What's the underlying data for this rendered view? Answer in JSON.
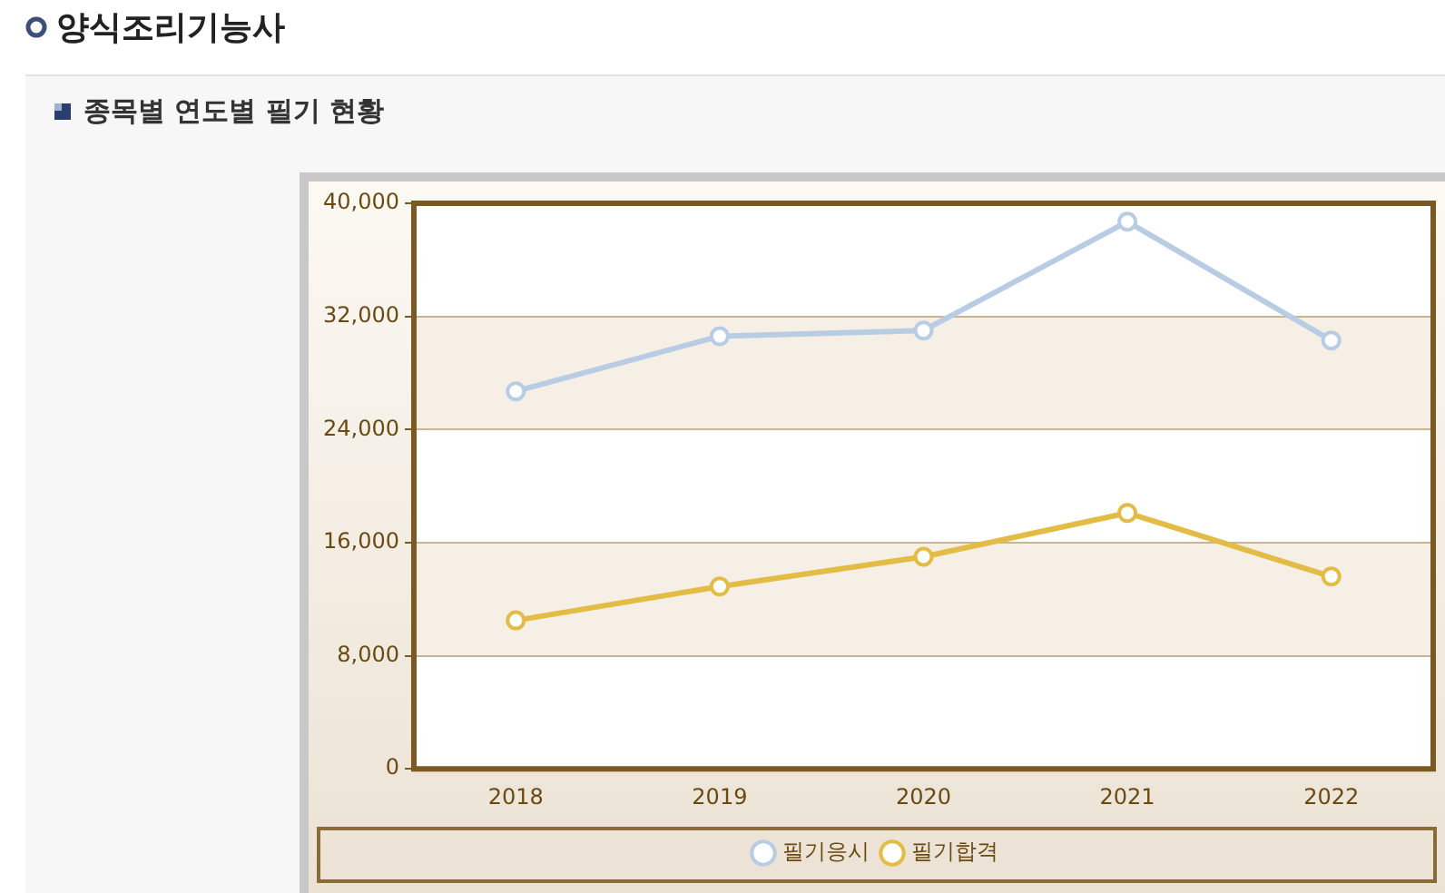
{
  "chart_data": {
    "type": "line",
    "title": "양식조리기능사",
    "subtitle": "종목별 연도별 필기 현황",
    "categories": [
      "2018",
      "2019",
      "2020",
      "2021",
      "2022"
    ],
    "series": [
      {
        "name": "필기응시",
        "color": "#b8cce4",
        "values": [
          26700,
          30600,
          31000,
          38700,
          30300
        ]
      },
      {
        "name": "필기합격",
        "color": "#e3bc45",
        "values": [
          10500,
          12900,
          15000,
          18100,
          13600
        ]
      }
    ],
    "ylim": [
      0,
      40000
    ],
    "yticks": [
      {
        "value": 0,
        "label": "0"
      },
      {
        "value": 8000,
        "label": "8,000"
      },
      {
        "value": 16000,
        "label": "16,000"
      },
      {
        "value": 24000,
        "label": "24,000"
      },
      {
        "value": 32000,
        "label": "32,000"
      },
      {
        "value": 40000,
        "label": "40,000"
      }
    ],
    "grid": "y",
    "legend": "bottom",
    "marker": "circle",
    "line_style": "solid"
  }
}
